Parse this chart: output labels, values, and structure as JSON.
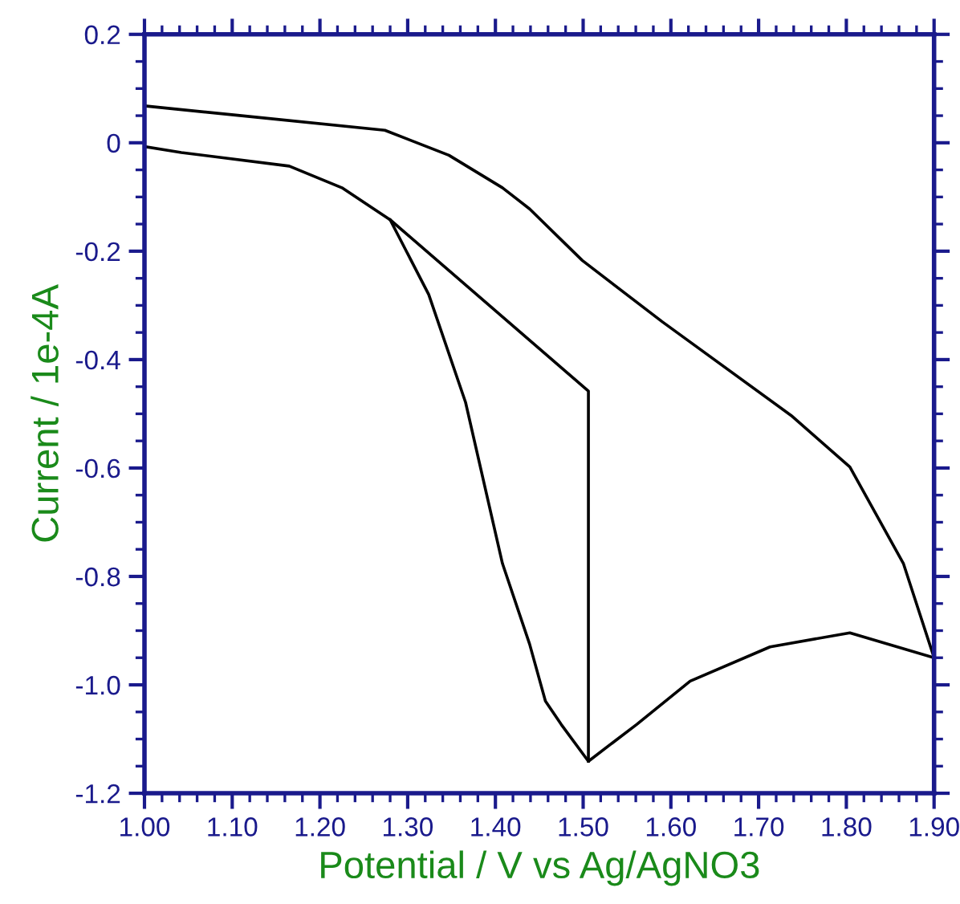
{
  "chart_data": {
    "type": "line",
    "xlabel": "Potential / V vs Ag/AgNO3",
    "ylabel": "Current / 1e-4A",
    "xlim": [
      1.0,
      1.9
    ],
    "ylim": [
      -1.2,
      0.2
    ],
    "xticks": [
      {
        "value": 1.0,
        "label": "1.00"
      },
      {
        "value": 1.1,
        "label": "1.10"
      },
      {
        "value": 1.2,
        "label": "1.20"
      },
      {
        "value": 1.3,
        "label": "1.30"
      },
      {
        "value": 1.4,
        "label": "1.40"
      },
      {
        "value": 1.5,
        "label": "1.50"
      },
      {
        "value": 1.6,
        "label": "1.60"
      },
      {
        "value": 1.7,
        "label": "1.70"
      },
      {
        "value": 1.8,
        "label": "1.80"
      },
      {
        "value": 1.9,
        "label": "1.90"
      }
    ],
    "yticks": [
      {
        "value": 0.2,
        "label": "0.2"
      },
      {
        "value": 0,
        "label": "0"
      },
      {
        "value": -0.2,
        "label": "-0.2"
      },
      {
        "value": -0.4,
        "label": "-0.4"
      },
      {
        "value": -0.6,
        "label": "-0.6"
      },
      {
        "value": -0.8,
        "label": "-0.8"
      },
      {
        "value": -1.0,
        "label": "-1.0"
      },
      {
        "value": -1.2,
        "label": "-1.2"
      }
    ],
    "grid": false,
    "marker": "none",
    "line_style": "solid",
    "series": [
      {
        "color": "#000000",
        "x": [
          1.0,
          1.042,
          1.165,
          1.225,
          1.28,
          1.324,
          1.366,
          1.408,
          1.439,
          1.457,
          1.475,
          1.506,
          1.561,
          1.622,
          1.713,
          1.804,
          1.9
        ],
        "values": [
          -0.007,
          -0.018,
          -0.043,
          -0.083,
          -0.142,
          -0.28,
          -0.479,
          -0.776,
          -0.925,
          -1.03,
          -1.073,
          -1.141,
          -1.073,
          -0.993,
          -0.93,
          -0.904,
          -0.95
        ]
      },
      {
        "color": "#000000",
        "x": [
          1.0,
          1.0,
          1.104,
          1.274,
          1.347,
          1.408,
          1.439,
          1.499,
          1.59,
          1.737,
          1.804,
          1.865,
          1.9
        ],
        "values": [
          -0.007,
          0.068,
          0.051,
          0.023,
          -0.023,
          -0.083,
          -0.122,
          -0.217,
          -0.33,
          -0.503,
          -0.598,
          -0.776,
          -0.95
        ]
      },
      {
        "color": "#000000",
        "x": [
          1.28,
          1.506,
          1.506
        ],
        "values": [
          -0.142,
          -0.458,
          -1.141
        ]
      }
    ]
  }
}
